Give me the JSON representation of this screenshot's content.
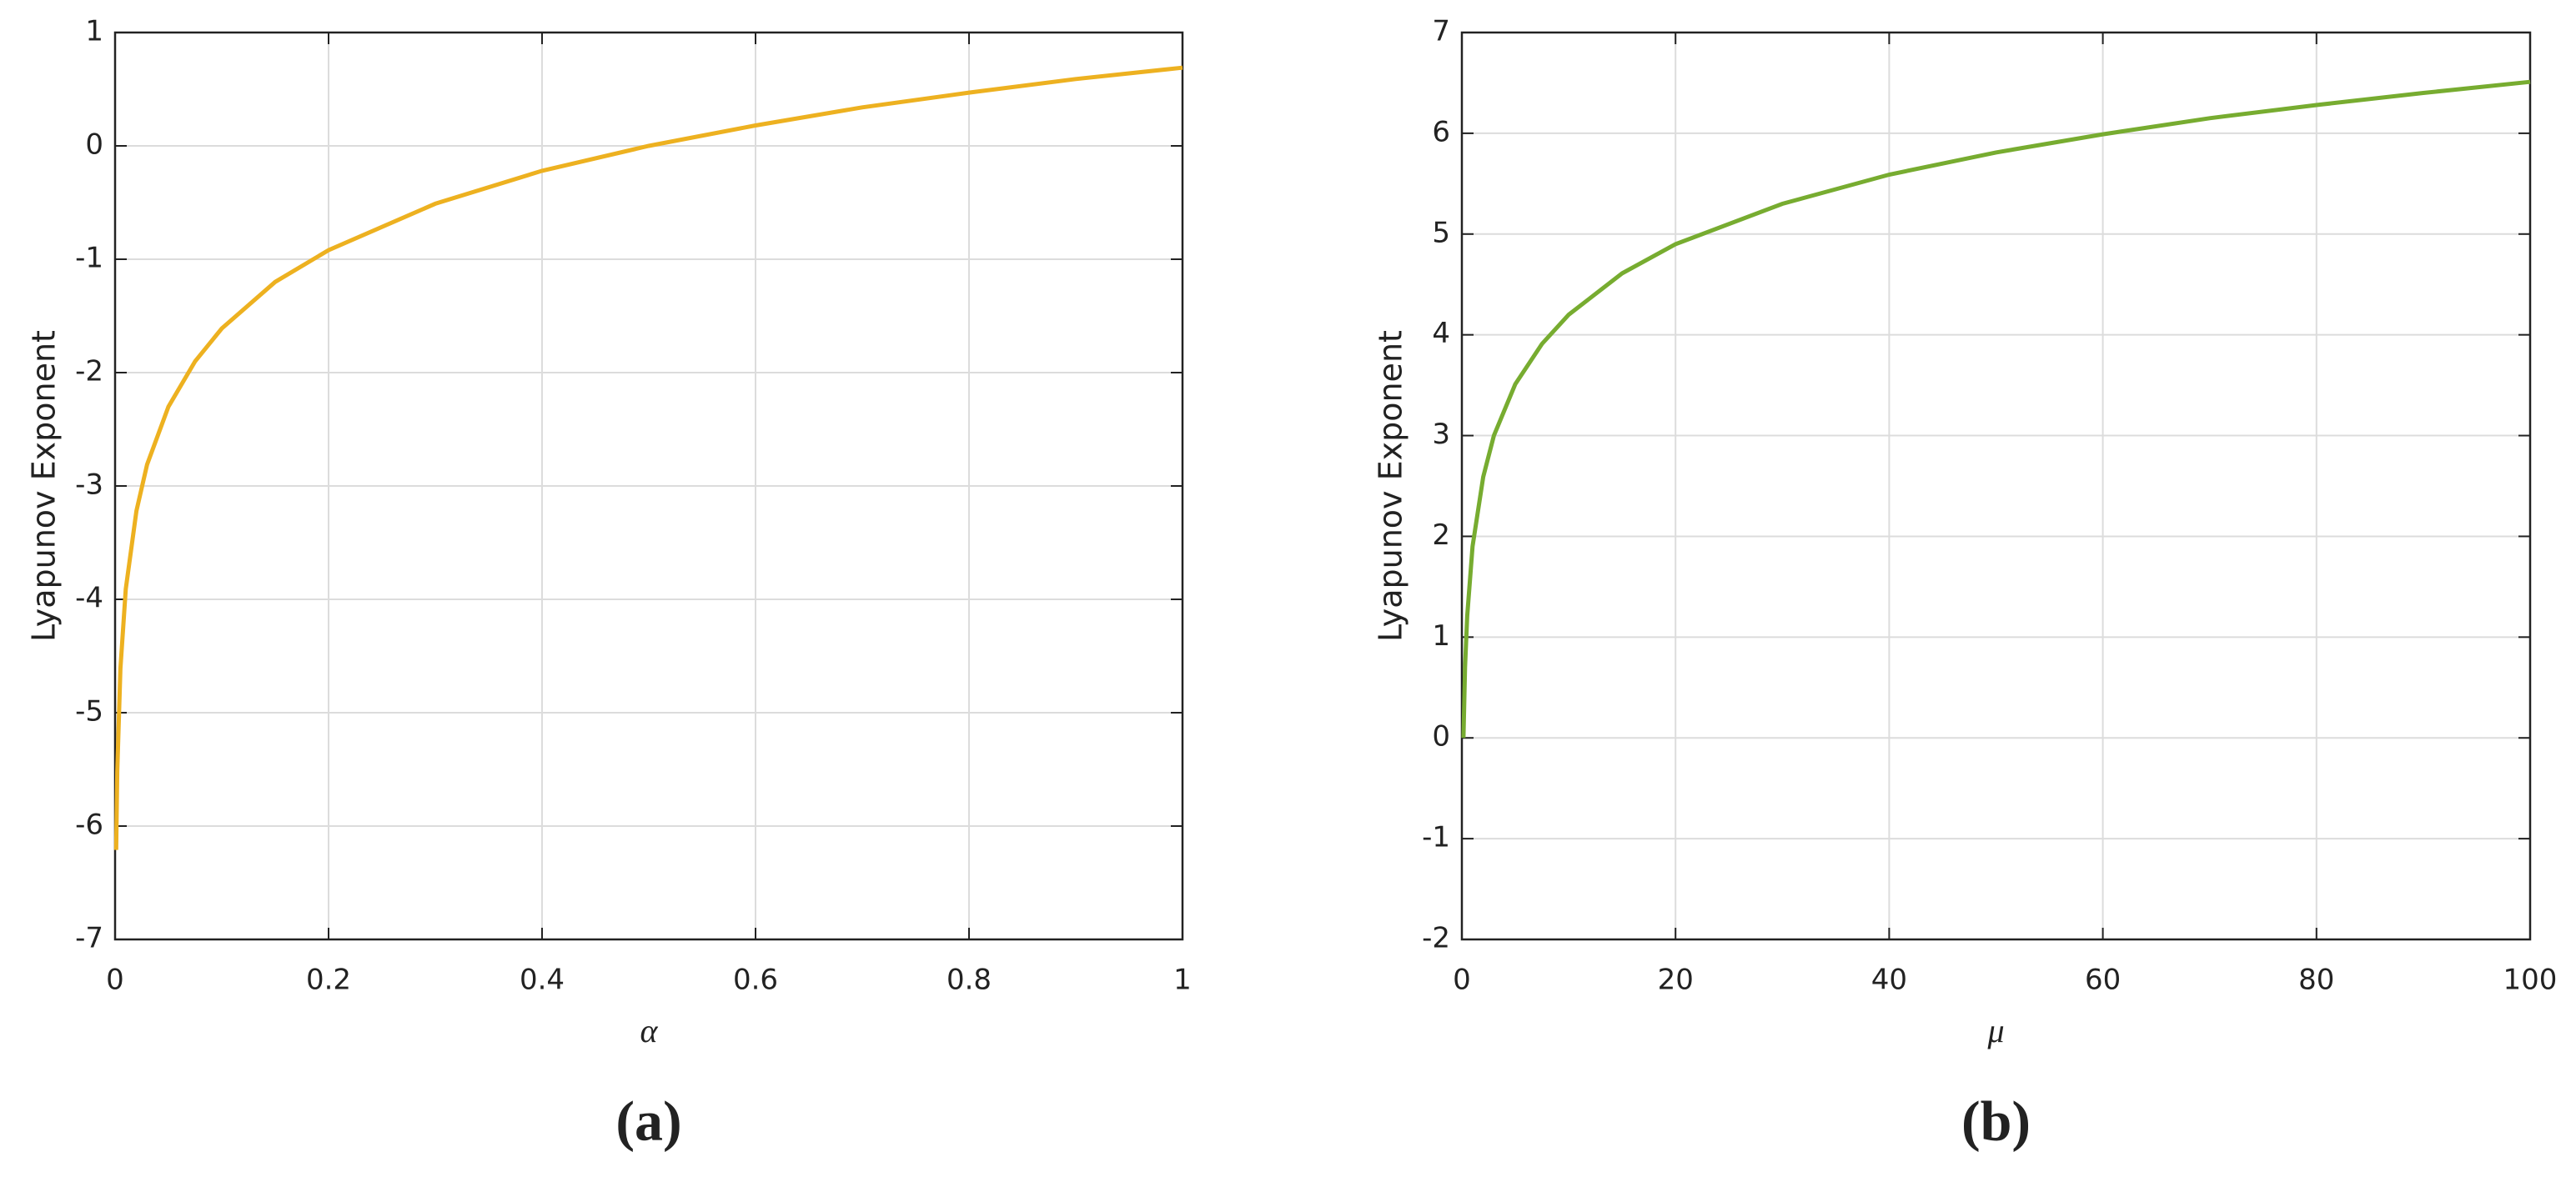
{
  "chart_data": [
    {
      "type": "line",
      "panel_label": "(a)",
      "xlabel": "α",
      "ylabel": "Lyapunov Exponent",
      "x": [
        0.001,
        0.002,
        0.005,
        0.01,
        0.02,
        0.03,
        0.05,
        0.075,
        0.1,
        0.15,
        0.2,
        0.3,
        0.4,
        0.5,
        0.6,
        0.7,
        0.8,
        0.9,
        1
      ],
      "series": [
        {
          "color": "#EDB120",
          "values": [
            -6.21,
            -5.52,
            -4.61,
            -3.91,
            -3.22,
            -2.81,
            -2.3,
            -1.9,
            -1.61,
            -1.2,
            -0.92,
            -0.51,
            -0.22,
            0,
            0.18,
            0.34,
            0.47,
            0.59,
            0.69
          ]
        }
      ],
      "xlim": [
        0,
        1
      ],
      "xticks": [
        0,
        0.2,
        0.4,
        0.6,
        0.8,
        1
      ],
      "ylim": [
        -7,
        1
      ],
      "yticks": [
        -7,
        -6,
        -5,
        -4,
        -3,
        -2,
        -1,
        0,
        1
      ],
      "grid": true
    },
    {
      "type": "line",
      "panel_label": "(b)",
      "xlabel": "μ",
      "ylabel": "Lyapunov Exponent",
      "x": [
        0.15,
        0.3,
        0.5,
        1,
        2,
        3,
        5,
        7.5,
        10,
        15,
        20,
        30,
        40,
        50,
        60,
        70,
        80,
        90,
        100
      ],
      "series": [
        {
          "color": "#77AC30",
          "values": [
            0.0,
            0.7,
            1.21,
            1.9,
            2.59,
            3.0,
            3.51,
            3.91,
            4.2,
            4.61,
            4.9,
            5.3,
            5.59,
            5.81,
            5.99,
            6.15,
            6.28,
            6.4,
            6.51
          ]
        }
      ],
      "xlim": [
        0,
        100
      ],
      "xticks": [
        0,
        20,
        40,
        60,
        80,
        100
      ],
      "ylim": [
        -2,
        7
      ],
      "yticks": [
        -2,
        -1,
        0,
        1,
        2,
        3,
        4,
        5,
        6,
        7
      ],
      "grid": true
    }
  ]
}
